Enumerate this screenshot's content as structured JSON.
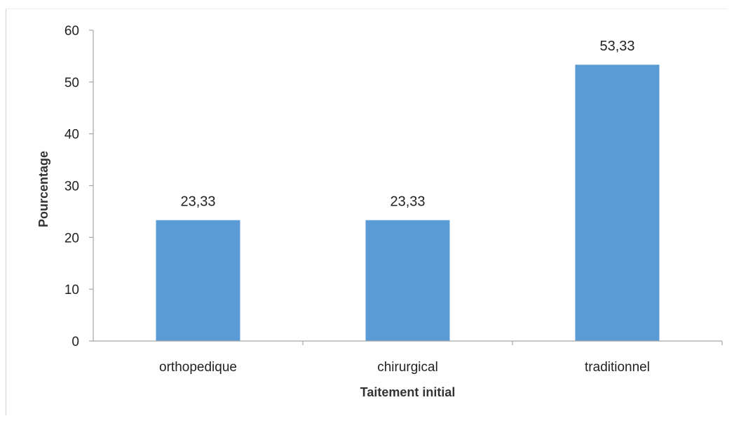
{
  "chart_data": {
    "type": "bar",
    "categories": [
      "orthopedique",
      "chirurgical",
      "traditionnel"
    ],
    "values": [
      23.33,
      23.33,
      53.33
    ],
    "data_labels": [
      "23,33",
      "23,33",
      "53,33"
    ],
    "title": "",
    "xlabel": "Taitement initial",
    "ylabel": "Pourcentage",
    "ylim": [
      0,
      60
    ],
    "yticks": [
      0,
      10,
      20,
      30,
      40,
      50,
      60
    ],
    "bar_color": "#5b9bd5",
    "grid": false,
    "legend": "none"
  }
}
